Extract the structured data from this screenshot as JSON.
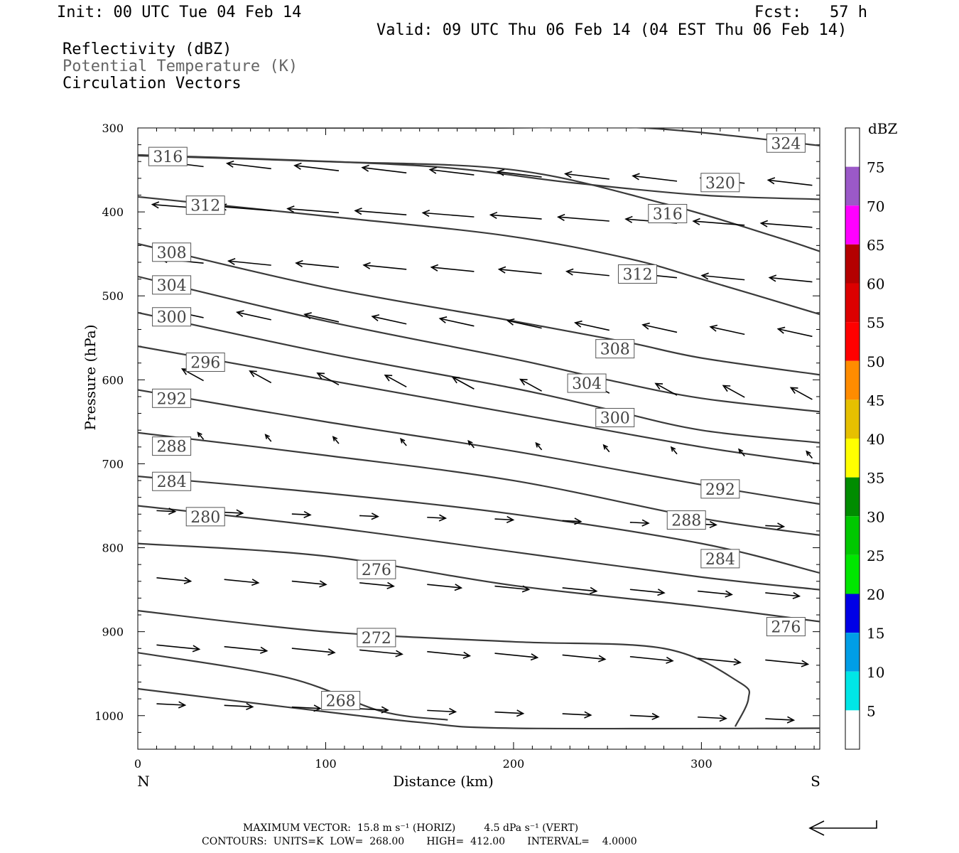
{
  "header": {
    "init": "Init: 00 UTC Tue 04 Feb 14",
    "fcst": "Fcst:   57 h",
    "valid": "Valid: 09 UTC Thu 06 Feb 14 (04 EST Thu 06 Feb 14)",
    "fields": [
      "Reflectivity (dBZ)",
      "Potential Temperature (K)",
      "Circulation Vectors"
    ]
  },
  "footer": {
    "max_vector": "MAXIMUM VECTOR:  15.8 m s⁻¹ (HORIZ)         4.5 dPa s⁻¹ (VERT)",
    "contours": "CONTOURS:  UNITS=K  LOW=  268.00       HIGH=  412.00       INTERVAL=    4.0000"
  },
  "chart_data": {
    "type": "line",
    "xlabel": "Distance (km)",
    "ylabel": "Pressure (hPa)",
    "xlim": [
      0,
      363
    ],
    "ylim": [
      300,
      1040
    ],
    "y_inverted": true,
    "x_ticks": [
      "0",
      "100",
      "200",
      "300"
    ],
    "y_ticks": [
      "300",
      "400",
      "500",
      "600",
      "700",
      "800",
      "900",
      "1000"
    ],
    "left_end_label": "N",
    "right_end_label": "S",
    "isentropes": [
      {
        "name": "324",
        "points": [
          [
            22,
            300
          ],
          [
            190,
            300
          ],
          [
            270,
            300
          ],
          [
            363,
            321
          ]
        ],
        "label_at": [
          345,
          318
        ]
      },
      {
        "name": "320",
        "points": [
          [
            0,
            332
          ],
          [
            150,
            345
          ],
          [
            230,
            365
          ],
          [
            300,
            380
          ],
          [
            363,
            385
          ]
        ],
        "label_at": [
          310,
          365
        ]
      },
      {
        "name": "316",
        "points": [
          [
            0,
            333
          ],
          [
            100,
            340
          ],
          [
            200,
            350
          ],
          [
            280,
            390
          ],
          [
            340,
            430
          ],
          [
            363,
            447
          ]
        ],
        "label_at": [
          16,
          334
        ],
        "label2_at": [
          282,
          402
        ]
      },
      {
        "name": "312",
        "points": [
          [
            0,
            382
          ],
          [
            100,
            405
          ],
          [
            195,
            428
          ],
          [
            260,
            455
          ],
          [
            300,
            480
          ],
          [
            363,
            522
          ]
        ],
        "label_at": [
          36,
          392
        ],
        "label2_at": [
          266,
          474
        ]
      },
      {
        "name": "308",
        "points": [
          [
            0,
            438
          ],
          [
            100,
            490
          ],
          [
            200,
            530
          ],
          [
            260,
            555
          ],
          [
            300,
            574
          ],
          [
            363,
            594
          ]
        ],
        "label_at": [
          18,
          448
        ],
        "label2_at": [
          254,
          563
        ]
      },
      {
        "name": "304",
        "points": [
          [
            0,
            477
          ],
          [
            100,
            530
          ],
          [
            200,
            575
          ],
          [
            250,
            600
          ],
          [
            300,
            622
          ],
          [
            363,
            638
          ]
        ],
        "label_at": [
          18,
          487
        ],
        "label2_at": [
          239,
          604
        ]
      },
      {
        "name": "300",
        "points": [
          [
            0,
            520
          ],
          [
            100,
            568
          ],
          [
            200,
            610
          ],
          [
            250,
            635
          ],
          [
            300,
            660
          ],
          [
            363,
            675
          ]
        ],
        "label_at": [
          18,
          525
        ],
        "label2_at": [
          254,
          645
        ]
      },
      {
        "name": "296",
        "points": [
          [
            0,
            560
          ],
          [
            100,
            600
          ],
          [
            200,
            640
          ],
          [
            300,
            680
          ],
          [
            363,
            700
          ]
        ],
        "label_at": [
          36,
          579
        ]
      },
      {
        "name": "292",
        "points": [
          [
            0,
            612
          ],
          [
            100,
            650
          ],
          [
            200,
            685
          ],
          [
            300,
            725
          ],
          [
            363,
            748
          ]
        ],
        "label_at": [
          18,
          622
        ],
        "label2_at": [
          310,
          730
        ]
      },
      {
        "name": "288",
        "points": [
          [
            0,
            663
          ],
          [
            100,
            690
          ],
          [
            200,
            720
          ],
          [
            300,
            765
          ],
          [
            363,
            785
          ]
        ],
        "label_at": [
          18,
          679
        ],
        "label2_at": [
          292,
          767
        ]
      },
      {
        "name": "284",
        "points": [
          [
            0,
            715
          ],
          [
            100,
            735
          ],
          [
            200,
            760
          ],
          [
            300,
            795
          ],
          [
            363,
            830
          ]
        ],
        "label_at": [
          18,
          721
        ],
        "label2_at": [
          310,
          813
        ]
      },
      {
        "name": "280",
        "points": [
          [
            0,
            750
          ],
          [
            100,
            775
          ],
          [
            200,
            805
          ],
          [
            300,
            835
          ],
          [
            363,
            850
          ]
        ],
        "label_at": [
          36,
          763
        ]
      },
      {
        "name": "276",
        "points": [
          [
            0,
            795
          ],
          [
            100,
            810
          ],
          [
            200,
            845
          ],
          [
            300,
            870
          ],
          [
            363,
            888
          ]
        ],
        "label_at": [
          127,
          826
        ],
        "label2_at": [
          345,
          894
        ]
      },
      {
        "name": "272",
        "points": [
          [
            0,
            875
          ],
          [
            100,
            900
          ],
          [
            200,
            912
          ],
          [
            280,
            920
          ],
          [
            320,
            960
          ],
          [
            325,
            980
          ],
          [
            318,
            1013
          ]
        ],
        "label_at": [
          127,
          907
        ]
      },
      {
        "name": "268",
        "points": [
          [
            0,
            925
          ],
          [
            80,
            955
          ],
          [
            130,
            995
          ],
          [
            165,
            1005
          ]
        ],
        "label_at": [
          108,
          982
        ]
      },
      {
        "name": "surface",
        "points": [
          [
            0,
            968
          ],
          [
            80,
            990
          ],
          [
            150,
            1008
          ],
          [
            200,
            1015
          ],
          [
            363,
            1015
          ]
        ]
      }
    ],
    "circulation_vectors_note": "horizontal vectors: westward aloft, eastward below 750 hPa",
    "colorbar": {
      "label": "dBZ",
      "levels": [
        "5",
        "10",
        "15",
        "20",
        "25",
        "30",
        "35",
        "40",
        "45",
        "50",
        "55",
        "60",
        "65",
        "70",
        "75"
      ],
      "colors": [
        "#ffffff",
        "#00e6e6",
        "#009ee6",
        "#0000e6",
        "#00e600",
        "#00c800",
        "#008c00",
        "#ffff00",
        "#e6c000",
        "#ff8c00",
        "#ff0000",
        "#dc0000",
        "#b40000",
        "#ff00ff",
        "#9b59c8",
        "#ffffff"
      ]
    }
  }
}
